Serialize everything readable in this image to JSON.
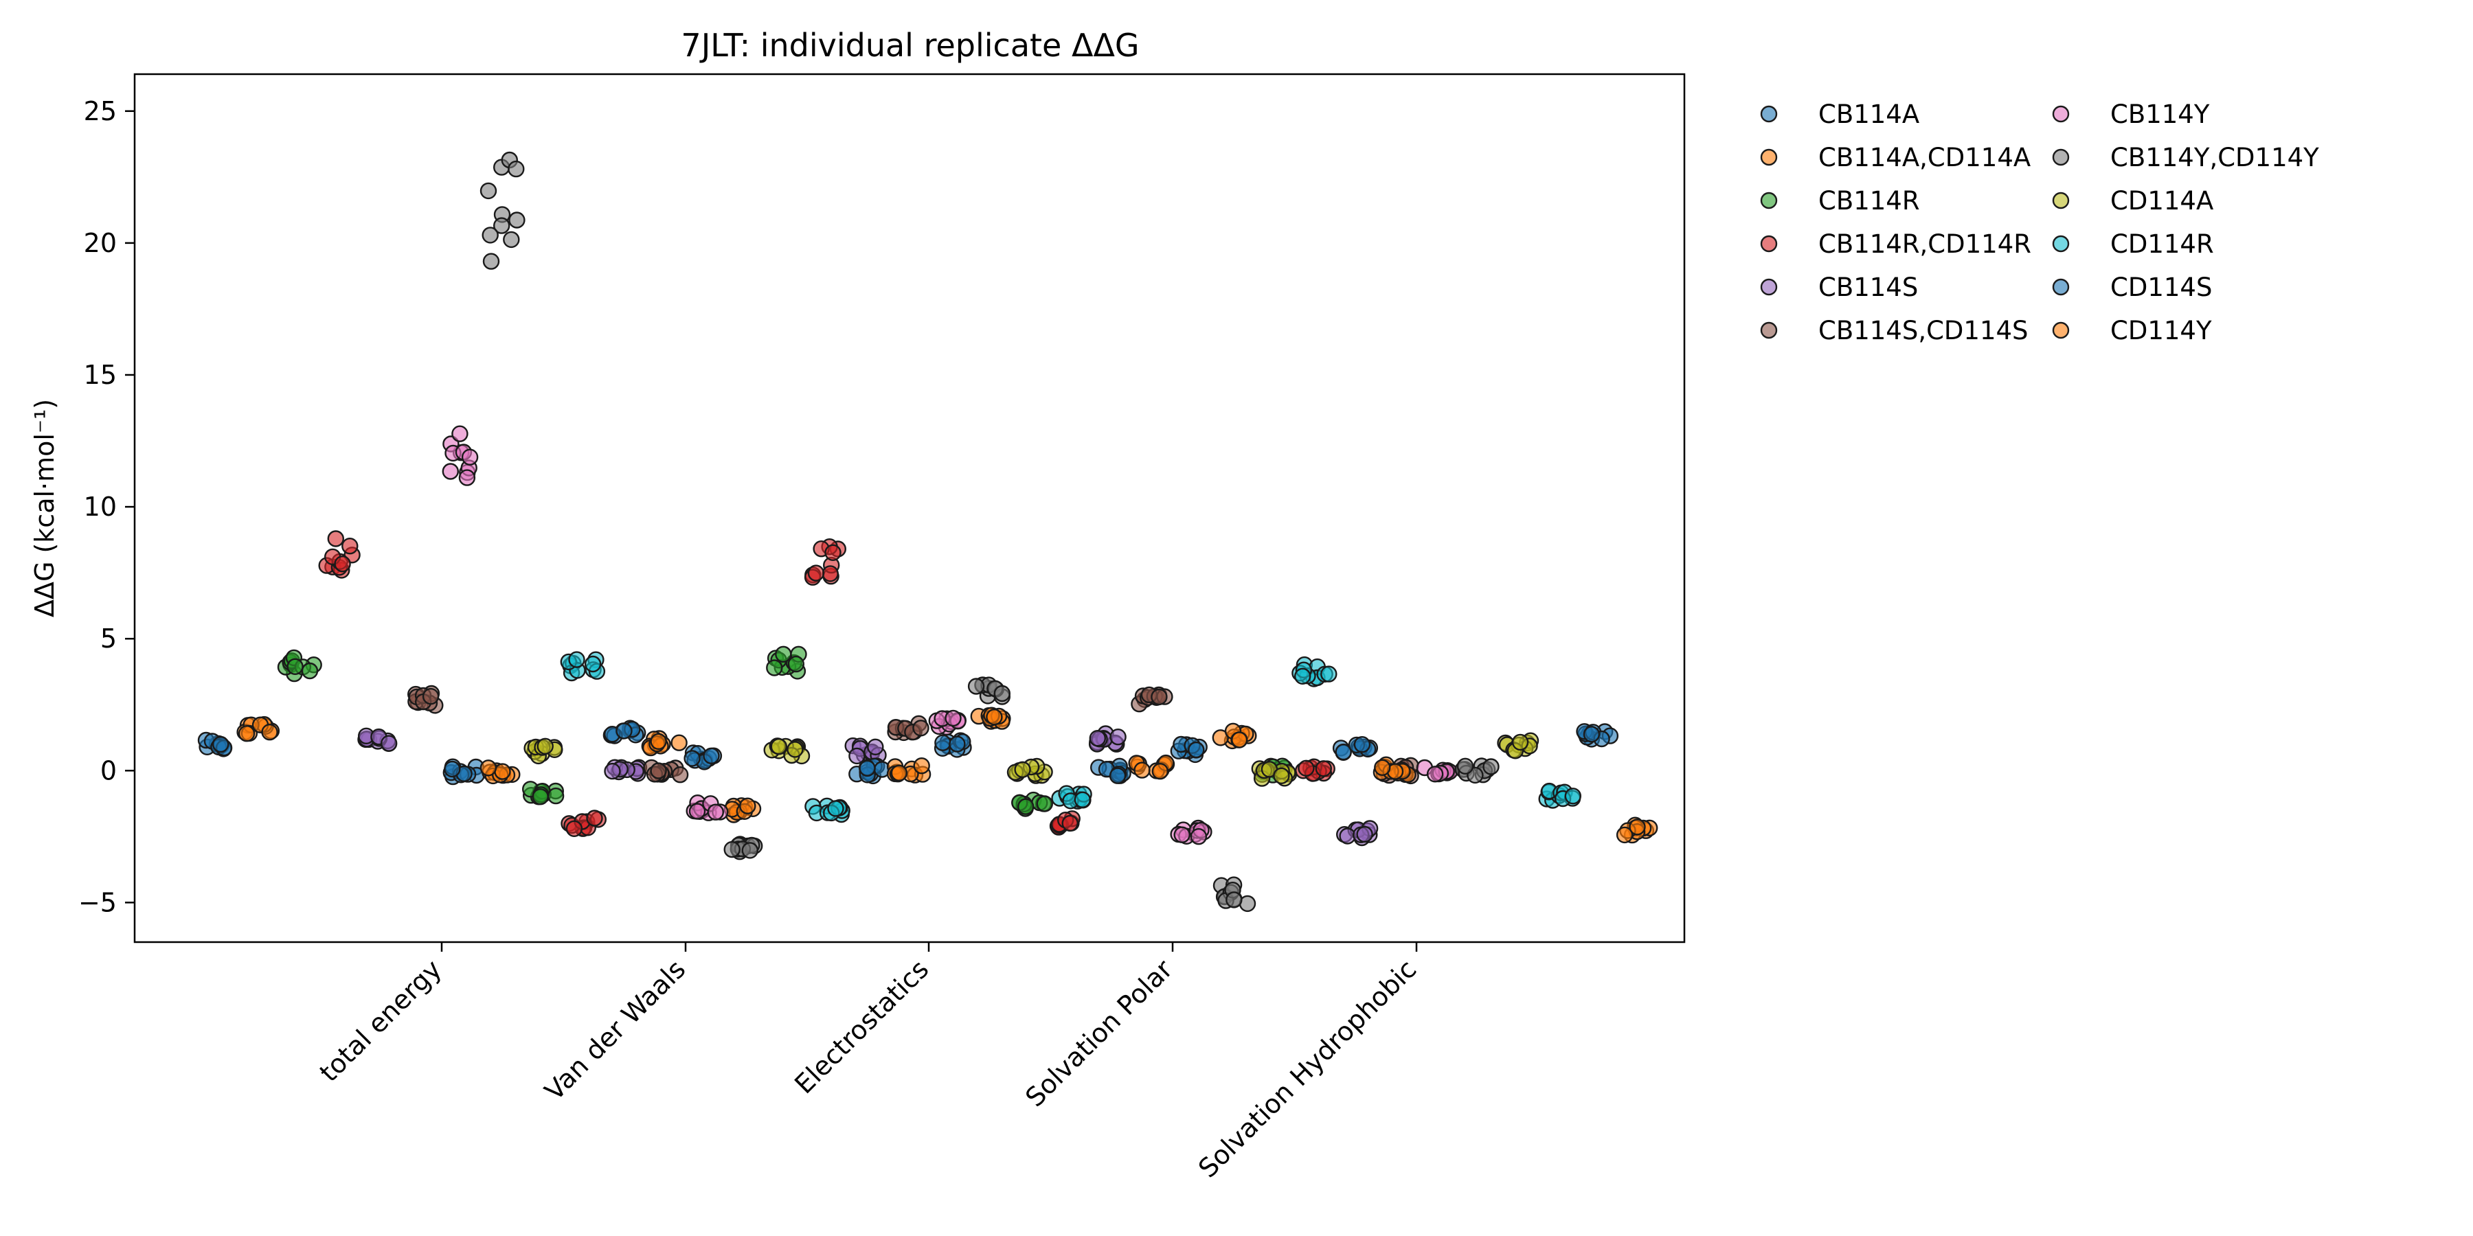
{
  "chart_data": {
    "type": "scatter",
    "title": "7JLT: individual replicate ΔΔG",
    "ylabel": "ΔΔG (kcal·mol⁻¹)",
    "xlabel": "",
    "ylim": [
      -6.5,
      26.4
    ],
    "yticks": [
      -5,
      0,
      5,
      10,
      15,
      20,
      25
    ],
    "ytick_labels": [
      "−5",
      "0",
      "5",
      "10",
      "15",
      "20",
      "25"
    ],
    "categories": [
      "total energy",
      "Van der Waals",
      "Electrostatics",
      "Solvation Polar",
      "Solvation Hydrophobic"
    ],
    "legend_position": "outside-right",
    "legend_columns": 2,
    "grid": false,
    "series": [
      {
        "name": "CB114A",
        "color": "#1f77b4",
        "values": [
          1.0,
          -0.05,
          0.5,
          0.95,
          0.8
        ]
      },
      {
        "name": "CB114A,CD114A",
        "color": "#ff7f0e",
        "values": [
          1.6,
          0.0,
          -1.5,
          1.9,
          1.3
        ]
      },
      {
        "name": "CB114R",
        "color": "#2ca02c",
        "values": [
          4.0,
          -0.8,
          4.1,
          -1.3,
          0.0
        ]
      },
      {
        "name": "CB114R,CD114R",
        "color": "#d62728",
        "values": [
          8.2,
          -2.0,
          7.9,
          -2.0,
          0.0
        ]
      },
      {
        "name": "CB114S",
        "color": "#9467bd",
        "values": [
          1.2,
          0.0,
          0.75,
          1.2,
          -2.35
        ]
      },
      {
        "name": "CB114S,CD114S",
        "color": "#8c564b",
        "values": [
          2.7,
          0.0,
          1.6,
          2.7,
          0.0
        ]
      },
      {
        "name": "CB114Y",
        "color": "#e377c2",
        "values": [
          12.0,
          -1.4,
          1.8,
          -2.35,
          0.0
        ]
      },
      {
        "name": "CB114Y,CD114Y",
        "color": "#7f7f7f",
        "values": [
          21.4,
          -2.85,
          3.0,
          -4.65,
          0.0
        ]
      },
      {
        "name": "CD114A",
        "color": "#bcbd22",
        "values": [
          0.75,
          0.75,
          0.0,
          -0.1,
          0.95
        ]
      },
      {
        "name": "CD114R",
        "color": "#17becf",
        "values": [
          4.0,
          -1.5,
          -1.0,
          3.8,
          -0.95
        ]
      },
      {
        "name": "CD114S",
        "color": "#1f77b4",
        "values": [
          1.5,
          0.0,
          0.0,
          0.8,
          1.35
        ]
      },
      {
        "name": "CD114Y",
        "color": "#ff7f0e",
        "values": [
          1.05,
          0.0,
          0.15,
          0.05,
          -2.25
        ]
      }
    ]
  }
}
